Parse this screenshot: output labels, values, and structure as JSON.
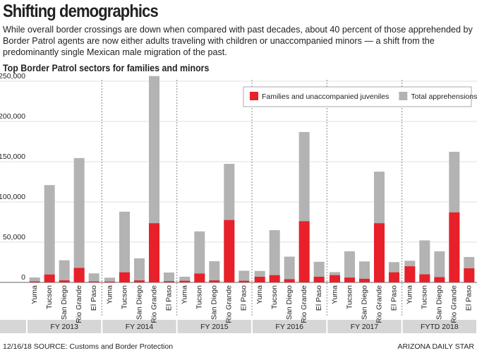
{
  "chart_data": {
    "type": "overlay-bar",
    "title": "Shifting demographics",
    "subtitle": "While overall border crossings are down when compared with past decades, about 40 percent of those apprehended by Border Patrol agents are now either adults traveling with children or unaccompanied minors — a shift from the predominantly single Mexican male migration of the past.",
    "chart_title": "Top Border Patrol sectors for families and minors",
    "groups": [
      "FY 2013",
      "FY 2014",
      "FY 2015",
      "FY 2016",
      "FY 2017",
      "FYTD 2018"
    ],
    "categories": [
      "Yuma",
      "Tucson",
      "San Diego",
      "Rio Grande",
      "El Paso",
      "Yuma",
      "Tucson",
      "San Diego",
      "Rio Grande",
      "El Paso",
      "Yuma",
      "Tucson",
      "San Diego",
      "Rio Grande",
      "El Paso",
      "Yuma",
      "Tucson",
      "San Diego",
      "Rio Grande",
      "El Paso",
      "Yuma",
      "Tucson",
      "San Diego",
      "Rio Grande",
      "El Paso",
      "Yuma",
      "Tucson",
      "San Diego",
      "Rio Grande",
      "El Paso"
    ],
    "series": [
      {
        "name": "Total apprehensions",
        "color": "#b3b3b3",
        "values": [
          6100,
          120900,
          27500,
          154500,
          11200,
          5900,
          87900,
          29900,
          256400,
          12300,
          7100,
          63400,
          26300,
          147300,
          14500,
          14200,
          64900,
          32000,
          186800,
          25600,
          12800,
          38700,
          26100,
          137600,
          25200,
          26900,
          52200,
          38600,
          162300,
          31600
        ]
      },
      {
        "name": "Families and unaccompanied juveniles",
        "color": "#e8202a",
        "values": [
          1200,
          9800,
          2500,
          18000,
          1200,
          1000,
          12500,
          2500,
          73500,
          1500,
          2000,
          11000,
          2500,
          77500,
          2000,
          7000,
          9000,
          4000,
          76000,
          7000,
          9000,
          6000,
          4500,
          73500,
          12500,
          20000,
          10000,
          6500,
          87000,
          17500
        ]
      }
    ],
    "ylim": [
      0,
      260000
    ],
    "yticks": [
      0,
      {
        "value": 50000,
        "label": "50,000"
      },
      {
        "value": 100000,
        "label": "100,000"
      },
      {
        "value": 150000,
        "label": "150,000"
      },
      {
        "value": 200000,
        "label": "200,000"
      },
      {
        "value": 250000,
        "label": "250,000"
      }
    ],
    "grid": true,
    "legend": "top-right",
    "footer_left": "12/16/18  SOURCE: Customs and Border Protection",
    "footer_right": "ARIZONA DAILY STAR"
  }
}
